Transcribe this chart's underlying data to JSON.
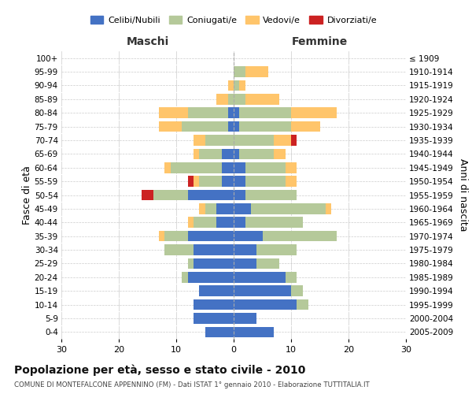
{
  "age_groups": [
    "100+",
    "95-99",
    "90-94",
    "85-89",
    "80-84",
    "75-79",
    "70-74",
    "65-69",
    "60-64",
    "55-59",
    "50-54",
    "45-49",
    "40-44",
    "35-39",
    "30-34",
    "25-29",
    "20-24",
    "15-19",
    "10-14",
    "5-9",
    "0-4"
  ],
  "birth_years": [
    "≤ 1909",
    "1910-1914",
    "1915-1919",
    "1920-1924",
    "1925-1929",
    "1930-1934",
    "1935-1939",
    "1940-1944",
    "1945-1949",
    "1950-1954",
    "1955-1959",
    "1960-1964",
    "1965-1969",
    "1970-1974",
    "1975-1979",
    "1980-1984",
    "1985-1989",
    "1990-1994",
    "1995-1999",
    "2000-2004",
    "2005-2009"
  ],
  "colors": {
    "celibi": "#4472c4",
    "coniugati": "#b5c99a",
    "vedovi": "#ffc56b",
    "divorziati": "#cc2222"
  },
  "maschi": {
    "celibi": [
      0,
      0,
      0,
      0,
      1,
      1,
      0,
      2,
      2,
      2,
      8,
      3,
      3,
      8,
      7,
      7,
      8,
      6,
      7,
      7,
      5
    ],
    "coniugati": [
      0,
      0,
      0,
      1,
      7,
      8,
      5,
      4,
      9,
      4,
      6,
      2,
      4,
      4,
      5,
      1,
      1,
      0,
      0,
      0,
      0
    ],
    "vedovi": [
      0,
      0,
      1,
      2,
      5,
      4,
      2,
      1,
      1,
      1,
      0,
      1,
      1,
      1,
      0,
      0,
      0,
      0,
      0,
      0,
      0
    ],
    "divorziati": [
      0,
      0,
      0,
      0,
      0,
      0,
      0,
      0,
      0,
      1,
      2,
      0,
      0,
      0,
      0,
      0,
      0,
      0,
      0,
      0,
      0
    ]
  },
  "femmine": {
    "celibi": [
      0,
      0,
      0,
      0,
      1,
      1,
      0,
      1,
      2,
      2,
      2,
      3,
      2,
      5,
      4,
      4,
      9,
      10,
      11,
      4,
      7
    ],
    "coniugati": [
      0,
      2,
      1,
      2,
      9,
      9,
      7,
      6,
      7,
      7,
      9,
      13,
      10,
      13,
      7,
      4,
      2,
      2,
      2,
      0,
      0
    ],
    "vedovi": [
      0,
      4,
      1,
      6,
      8,
      5,
      3,
      2,
      2,
      2,
      0,
      1,
      0,
      0,
      0,
      0,
      0,
      0,
      0,
      0,
      0
    ],
    "divorziati": [
      0,
      0,
      0,
      0,
      0,
      0,
      1,
      0,
      0,
      0,
      0,
      0,
      0,
      0,
      0,
      0,
      0,
      0,
      0,
      0,
      0
    ]
  },
  "xlim": 30,
  "title": "Popolazione per età, sesso e stato civile - 2010",
  "subtitle": "COMUNE DI MONTEFALCONE APPENNINO (FM) - Dati ISTAT 1° gennaio 2010 - Elaborazione TUTTITALIA.IT",
  "ylabel_left": "Fasce di età",
  "ylabel_right": "Anni di nascita",
  "legend_labels": [
    "Celibi/Nubili",
    "Coniugati/e",
    "Vedovi/e",
    "Divorziati/e"
  ],
  "maschi_label": "Maschi",
  "femmine_label": "Femmine"
}
